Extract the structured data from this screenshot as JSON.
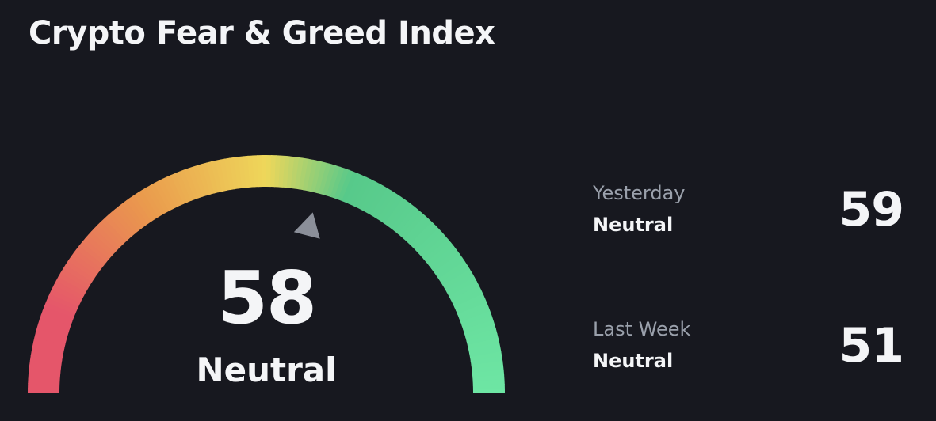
{
  "header": {
    "title": "Crypto Fear & Greed Index"
  },
  "gauge": {
    "value": 58,
    "value_text": "58",
    "sentiment": "Neutral",
    "scale_min": 0,
    "scale_max": 100,
    "colors": {
      "extreme_fear": "#e5566a",
      "fear": "#ea9a4d",
      "neutral": "#eed75a",
      "greed": "#57c98a",
      "extreme_greed": "#6ee6a4",
      "pointer": "#8b8f99"
    }
  },
  "history": [
    {
      "period": "Yesterday",
      "sentiment": "Neutral",
      "value": "59"
    },
    {
      "period": "Last Week",
      "sentiment": "Neutral",
      "value": "51"
    }
  ],
  "theme": {
    "background": "#17181f",
    "text_primary": "#f4f5f7",
    "text_secondary": "#9aa0ab"
  }
}
